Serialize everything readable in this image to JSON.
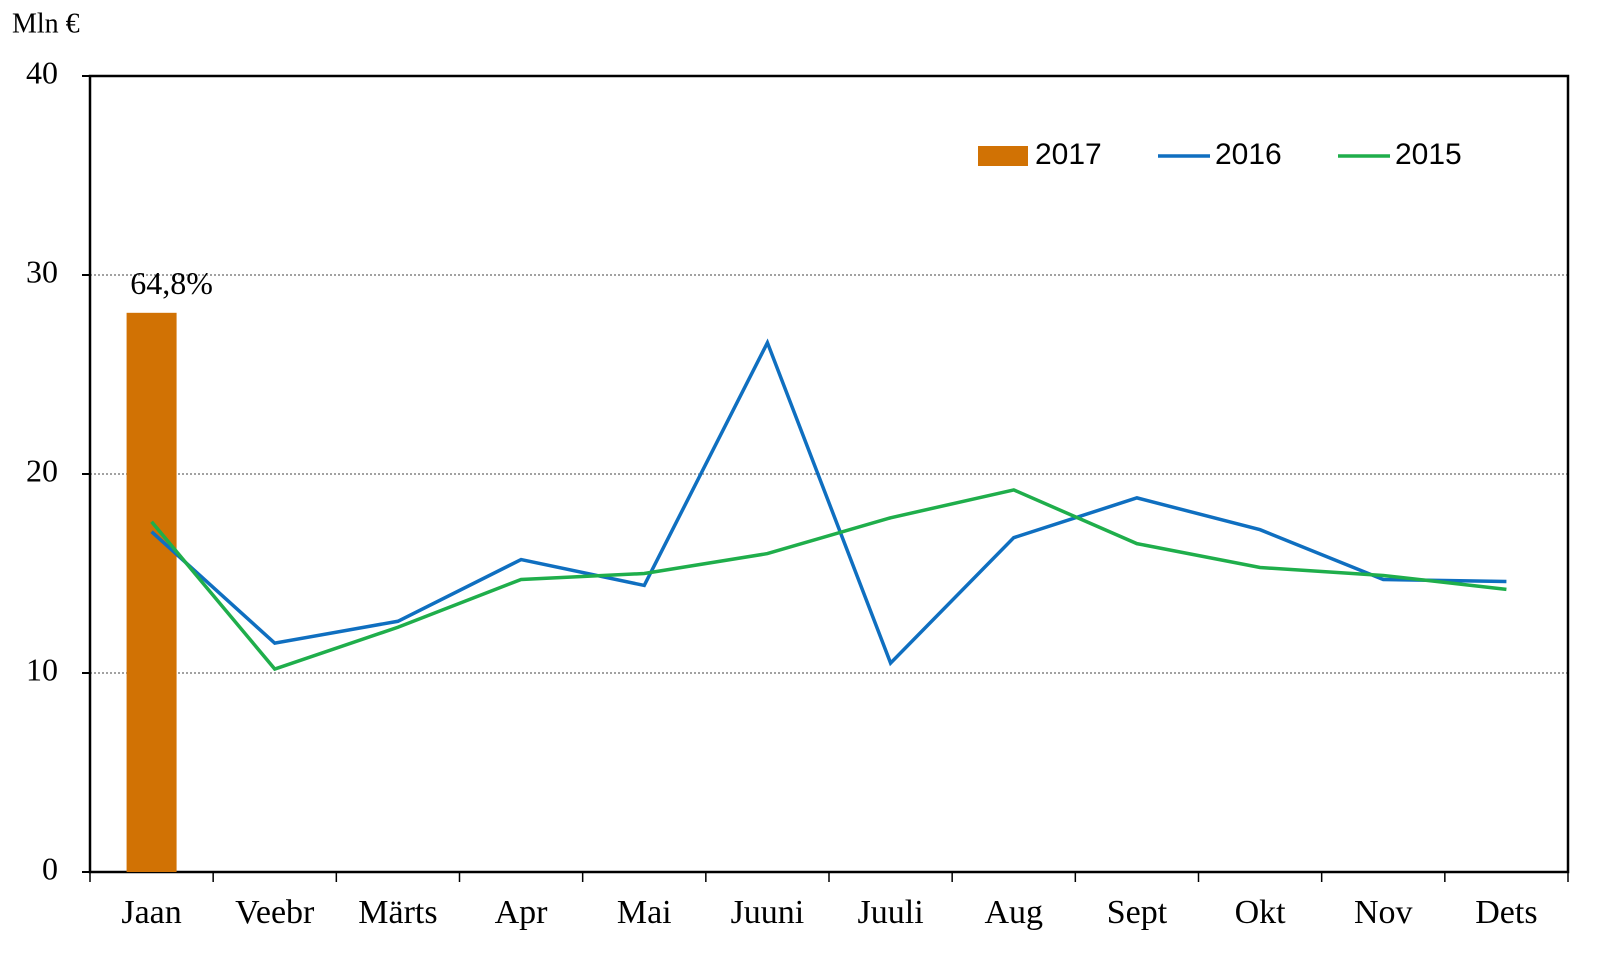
{
  "chart_data": {
    "type": "bar-line",
    "y_label": "Mln €",
    "categories": [
      "Jaan",
      "Veebr",
      "Märts",
      "Apr",
      "Mai",
      "Juuni",
      "Juuli",
      "Aug",
      "Sept",
      "Okt",
      "Nov",
      "Dets"
    ],
    "series": [
      {
        "name": "2017",
        "type": "bar",
        "color": "#d17204",
        "values": [
          28.1,
          null,
          null,
          null,
          null,
          null,
          null,
          null,
          null,
          null,
          null,
          null
        ],
        "annotation": "64,8%"
      },
      {
        "name": "2016",
        "type": "line",
        "color": "#0f6fc0",
        "values": [
          17.1,
          11.5,
          12.6,
          15.7,
          14.4,
          26.6,
          10.5,
          16.8,
          18.8,
          17.2,
          14.7,
          14.6
        ]
      },
      {
        "name": "2015",
        "type": "line",
        "color": "#1fae4b",
        "values": [
          17.6,
          10.2,
          12.3,
          14.7,
          15.0,
          16.0,
          17.8,
          19.2,
          16.5,
          15.3,
          14.9,
          14.2
        ]
      }
    ],
    "ylim": [
      0,
      40
    ],
    "yticks": [
      0,
      10,
      20,
      30,
      40
    ],
    "grid": true,
    "legend": "top-right"
  }
}
